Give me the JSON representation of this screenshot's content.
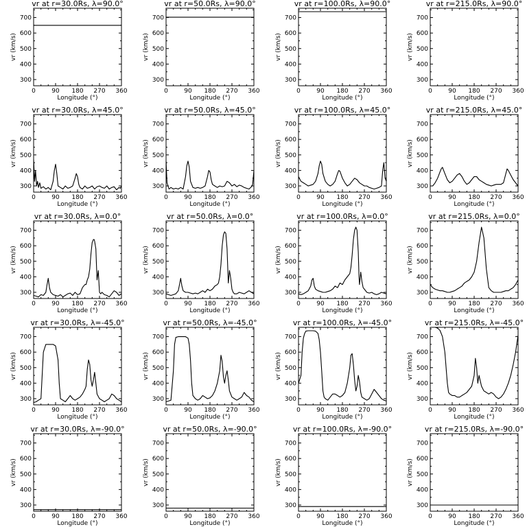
{
  "chart_data": {
    "type": "line",
    "xlabel": "Longitude (°)",
    "ylabel": "vr (km/s)",
    "xlim": [
      0,
      360
    ],
    "ylim": [
      260,
      760
    ],
    "xticks": [
      0,
      90,
      180,
      270,
      360
    ],
    "yticks": [
      300,
      400,
      500,
      600,
      700
    ],
    "grid": false,
    "panels": [
      {
        "title": "vr at r=30.0Rs, λ=90.0°",
        "x": [
          0,
          360
        ],
        "y": [
          650,
          650
        ]
      },
      {
        "title": "vr at r=50.0Rs, λ=90.0°",
        "x": [
          0,
          360
        ],
        "y": [
          702,
          702
        ]
      },
      {
        "title": "vr at r=100.0Rs, λ=90.0°",
        "x": [
          0,
          360
        ],
        "y": [
          738,
          738
        ]
      },
      {
        "title": "vr at r=215.0Rs, λ=90.0°",
        "x": [
          0,
          360
        ],
        "y": [
          760,
          760
        ]
      },
      {
        "title": "vr at r=30.0Rs, λ=45.0°",
        "x": [
          0,
          4,
          8,
          12,
          16,
          20,
          25,
          30,
          40,
          50,
          60,
          70,
          80,
          85,
          90,
          95,
          100,
          110,
          120,
          130,
          140,
          150,
          160,
          170,
          175,
          180,
          185,
          190,
          200,
          210,
          220,
          230,
          240,
          250,
          260,
          270,
          280,
          290,
          300,
          310,
          320,
          330,
          340,
          350,
          355,
          360
        ],
        "y": [
          470,
          330,
          400,
          300,
          330,
          290,
          320,
          285,
          295,
          280,
          290,
          275,
          330,
          400,
          440,
          380,
          300,
          290,
          280,
          300,
          285,
          290,
          300,
          350,
          380,
          360,
          310,
          290,
          280,
          300,
          285,
          290,
          300,
          280,
          295,
          300,
          290,
          285,
          300,
          280,
          290,
          295,
          275,
          290,
          285,
          300
        ]
      },
      {
        "title": "vr at r=50.0Rs, λ=45.0°",
        "x": [
          0,
          4,
          8,
          12,
          20,
          30,
          40,
          50,
          60,
          70,
          80,
          85,
          90,
          95,
          100,
          110,
          120,
          130,
          140,
          150,
          160,
          170,
          175,
          180,
          185,
          190,
          200,
          210,
          220,
          230,
          240,
          250,
          260,
          270,
          280,
          290,
          300,
          310,
          320,
          330,
          340,
          350,
          355,
          360
        ],
        "y": [
          460,
          320,
          300,
          280,
          290,
          280,
          285,
          280,
          290,
          280,
          360,
          430,
          460,
          420,
          330,
          290,
          285,
          290,
          285,
          290,
          300,
          360,
          400,
          390,
          340,
          310,
          300,
          290,
          300,
          295,
          300,
          330,
          320,
          300,
          310,
          295,
          305,
          300,
          290,
          285,
          280,
          295,
          310,
          400
        ]
      },
      {
        "title": "vr at r=100.0Rs, λ=45.0°",
        "x": [
          0,
          10,
          20,
          30,
          40,
          50,
          60,
          70,
          80,
          85,
          90,
          95,
          100,
          110,
          120,
          130,
          140,
          150,
          160,
          165,
          170,
          180,
          190,
          200,
          210,
          220,
          230,
          240,
          250,
          260,
          270,
          280,
          290,
          300,
          310,
          320,
          330,
          340,
          345,
          350,
          355,
          360
        ],
        "y": [
          360,
          330,
          320,
          310,
          300,
          305,
          310,
          330,
          380,
          430,
          460,
          440,
          380,
          330,
          310,
          300,
          310,
          330,
          380,
          400,
          395,
          350,
          320,
          300,
          310,
          330,
          350,
          340,
          320,
          310,
          300,
          300,
          290,
          285,
          280,
          285,
          290,
          300,
          400,
          450,
          350,
          330
        ]
      },
      {
        "title": "vr at r=215.0Rs, λ=45.0°",
        "x": [
          0,
          10,
          20,
          30,
          40,
          45,
          50,
          60,
          70,
          80,
          90,
          100,
          110,
          120,
          130,
          140,
          150,
          160,
          170,
          180,
          190,
          200,
          210,
          220,
          230,
          240,
          250,
          260,
          270,
          280,
          290,
          300,
          310,
          315,
          320,
          330,
          340,
          350,
          360
        ],
        "y": [
          300,
          300,
          320,
          350,
          390,
          410,
          420,
          380,
          340,
          320,
          330,
          350,
          370,
          380,
          360,
          330,
          310,
          320,
          340,
          360,
          360,
          340,
          330,
          320,
          310,
          305,
          300,
          305,
          310,
          310,
          310,
          320,
          380,
          410,
          400,
          370,
          340,
          320,
          300
        ]
      },
      {
        "title": "vr at r=30.0Rs, λ=0.0°",
        "x": [
          0,
          10,
          20,
          30,
          40,
          50,
          55,
          60,
          65,
          70,
          80,
          90,
          100,
          110,
          120,
          130,
          140,
          150,
          160,
          170,
          180,
          190,
          200,
          210,
          215,
          220,
          225,
          230,
          235,
          240,
          245,
          248,
          250,
          255,
          260,
          265,
          270,
          275,
          280,
          290,
          300,
          310,
          320,
          330,
          340,
          350,
          360
        ],
        "y": [
          280,
          275,
          270,
          285,
          280,
          300,
          350,
          390,
          330,
          300,
          285,
          280,
          275,
          285,
          270,
          280,
          290,
          295,
          280,
          300,
          285,
          290,
          330,
          350,
          350,
          380,
          400,
          450,
          550,
          620,
          640,
          640,
          630,
          580,
          380,
          440,
          300,
          290,
          300,
          285,
          280,
          270,
          290,
          310,
          300,
          280,
          290
        ]
      },
      {
        "title": "vr at r=50.0Rs, λ=0.0°",
        "x": [
          0,
          10,
          20,
          30,
          40,
          50,
          55,
          60,
          65,
          70,
          80,
          90,
          100,
          110,
          120,
          130,
          140,
          150,
          160,
          170,
          180,
          190,
          200,
          210,
          215,
          220,
          225,
          230,
          235,
          240,
          245,
          250,
          255,
          260,
          265,
          270,
          275,
          280,
          290,
          300,
          310,
          320,
          330,
          340,
          350,
          360
        ],
        "y": [
          290,
          285,
          280,
          285,
          290,
          310,
          350,
          390,
          340,
          310,
          300,
          300,
          295,
          290,
          295,
          290,
          300,
          310,
          300,
          320,
          310,
          320,
          340,
          350,
          360,
          400,
          480,
          600,
          670,
          690,
          680,
          580,
          360,
          440,
          390,
          320,
          300,
          290,
          290,
          300,
          295,
          290,
          300,
          310,
          300,
          290
        ]
      },
      {
        "title": "vr at r=100.0Rs, λ=0.0°",
        "x": [
          0,
          10,
          20,
          30,
          40,
          50,
          55,
          60,
          65,
          70,
          80,
          90,
          100,
          110,
          120,
          130,
          140,
          150,
          160,
          170,
          180,
          190,
          200,
          210,
          215,
          220,
          225,
          230,
          235,
          240,
          245,
          248,
          250,
          255,
          260,
          265,
          270,
          280,
          290,
          300,
          310,
          320,
          330,
          340,
          350,
          360
        ],
        "y": [
          290,
          285,
          290,
          300,
          310,
          340,
          380,
          390,
          340,
          320,
          310,
          305,
          300,
          300,
          305,
          310,
          320,
          340,
          330,
          360,
          350,
          380,
          400,
          420,
          460,
          540,
          640,
          700,
          720,
          700,
          560,
          400,
          350,
          430,
          370,
          330,
          320,
          300,
          295,
          300,
          290,
          285,
          290,
          300,
          295,
          290
        ]
      },
      {
        "title": "vr at r=215.0Rs, λ=0.0°",
        "x": [
          0,
          10,
          20,
          30,
          40,
          50,
          60,
          70,
          80,
          90,
          100,
          110,
          120,
          130,
          140,
          150,
          160,
          170,
          180,
          190,
          200,
          210,
          220,
          230,
          240,
          250,
          260,
          270,
          280,
          290,
          300,
          310,
          320,
          330,
          340,
          350,
          360
        ],
        "y": [
          350,
          330,
          320,
          315,
          310,
          310,
          305,
          300,
          300,
          305,
          310,
          320,
          330,
          340,
          360,
          370,
          380,
          400,
          430,
          500,
          620,
          720,
          650,
          450,
          330,
          310,
          300,
          300,
          300,
          300,
          305,
          310,
          310,
          320,
          330,
          350,
          380
        ]
      },
      {
        "title": "vr at r=30.0Rs, λ=-45.0°",
        "x": [
          0,
          10,
          20,
          30,
          40,
          50,
          60,
          70,
          80,
          90,
          100,
          105,
          110,
          120,
          130,
          140,
          150,
          160,
          170,
          180,
          190,
          200,
          210,
          215,
          220,
          225,
          230,
          235,
          240,
          245,
          250,
          255,
          260,
          270,
          280,
          290,
          300,
          310,
          320,
          330,
          340,
          350,
          360
        ],
        "y": [
          275,
          280,
          290,
          300,
          600,
          650,
          650,
          650,
          650,
          640,
          550,
          400,
          300,
          290,
          280,
          300,
          320,
          300,
          290,
          300,
          310,
          330,
          360,
          380,
          490,
          550,
          520,
          420,
          380,
          420,
          470,
          400,
          330,
          300,
          290,
          280,
          290,
          300,
          330,
          320,
          300,
          290,
          280
        ]
      },
      {
        "title": "vr at r=50.0Rs, λ=-45.0°",
        "x": [
          0,
          10,
          20,
          30,
          35,
          40,
          50,
          60,
          70,
          80,
          90,
          95,
          100,
          105,
          110,
          120,
          130,
          140,
          150,
          160,
          170,
          180,
          190,
          200,
          210,
          220,
          225,
          230,
          235,
          240,
          245,
          250,
          255,
          260,
          270,
          280,
          290,
          300,
          310,
          320,
          330,
          340,
          350,
          360
        ],
        "y": [
          280,
          285,
          290,
          480,
          650,
          695,
          700,
          700,
          700,
          700,
          690,
          650,
          550,
          400,
          320,
          300,
          290,
          300,
          320,
          310,
          300,
          305,
          320,
          350,
          400,
          480,
          580,
          540,
          440,
          400,
          450,
          480,
          420,
          350,
          310,
          300,
          290,
          300,
          310,
          340,
          320,
          310,
          290,
          280
        ]
      },
      {
        "title": "vr at r=100.0Rs, λ=-45.0°",
        "x": [
          0,
          10,
          15,
          20,
          25,
          30,
          40,
          50,
          60,
          70,
          80,
          85,
          90,
          95,
          100,
          105,
          110,
          120,
          130,
          140,
          150,
          160,
          170,
          180,
          190,
          200,
          210,
          215,
          220,
          225,
          230,
          235,
          240,
          245,
          250,
          255,
          260,
          270,
          280,
          290,
          300,
          310,
          320,
          330,
          340,
          350,
          360
        ],
        "y": [
          400,
          450,
          600,
          690,
          720,
          735,
          738,
          738,
          738,
          735,
          720,
          680,
          600,
          480,
          350,
          310,
          300,
          290,
          310,
          330,
          330,
          320,
          310,
          320,
          340,
          400,
          500,
          580,
          590,
          520,
          420,
          350,
          380,
          450,
          410,
          340,
          310,
          300,
          290,
          300,
          330,
          360,
          340,
          320,
          300,
          290,
          285
        ]
      },
      {
        "title": "vr at r=215.0Rs, λ=-45.0°",
        "x": [
          0,
          10,
          20,
          30,
          40,
          50,
          60,
          65,
          70,
          75,
          80,
          90,
          100,
          110,
          120,
          130,
          140,
          150,
          160,
          170,
          180,
          185,
          190,
          195,
          200,
          210,
          220,
          230,
          240,
          250,
          260,
          270,
          280,
          290,
          300,
          310,
          320,
          330,
          340,
          350,
          360
        ],
        "y": [
          760,
          760,
          760,
          755,
          740,
          700,
          600,
          500,
          400,
          340,
          330,
          320,
          320,
          310,
          310,
          320,
          330,
          340,
          360,
          380,
          450,
          560,
          500,
          400,
          450,
          380,
          350,
          340,
          330,
          340,
          330,
          310,
          300,
          310,
          330,
          360,
          400,
          450,
          520,
          600,
          710
        ]
      },
      {
        "title": "vr at r=30.0Rs, λ=-90.0°",
        "x": [
          0,
          360
        ],
        "y": [
          270,
          270
        ]
      },
      {
        "title": "vr at r=50.0Rs, λ=-90.0°",
        "x": [
          0,
          360
        ],
        "y": [
          280,
          280
        ]
      },
      {
        "title": "vr at r=100.0Rs, λ=-90.0°",
        "x": [
          0,
          360
        ],
        "y": [
          290,
          290
        ]
      },
      {
        "title": "vr at r=215.0Rs, λ=-90.0°",
        "x": [
          0,
          360
        ],
        "y": [
          300,
          300
        ]
      }
    ]
  }
}
